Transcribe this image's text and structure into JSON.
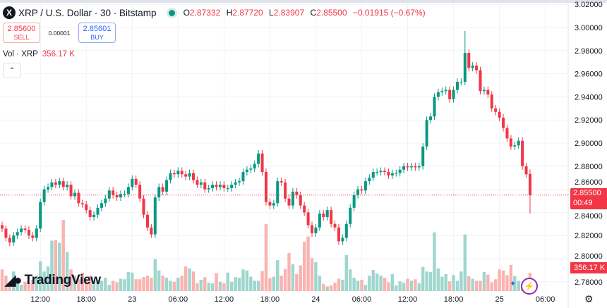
{
  "header": {
    "logo_text": "X",
    "title": "XRP / U.S. Dollar · 30 · Bitstamp",
    "ohlc": [
      {
        "label": "O",
        "value": "2.87332"
      },
      {
        "label": "H",
        "value": "2.87720"
      },
      {
        "label": "L",
        "value": "2.83907"
      },
      {
        "label": "C",
        "value": "2.85500"
      }
    ],
    "change": "−0.01915 (−0.67%)"
  },
  "trade": {
    "sell_price": "2.85600",
    "sell_label": "SELL",
    "spread": "0.00001",
    "buy_price": "2.85601",
    "buy_label": "BUY"
  },
  "volume_legend": {
    "label": "Vol · XRP",
    "value": "356.17 K"
  },
  "collapse_icon": "chevron-up-icon",
  "branding": {
    "name": "TradingView",
    "mark": "17"
  },
  "price_label": {
    "price": "2.85500",
    "countdown": "00:49"
  },
  "volume_label": "356.17 K",
  "colors": {
    "up": "#089981",
    "down": "#f23645",
    "grid": "#f0f3fa",
    "up_volume": "#9fd6cd",
    "down_volume": "#f9b3b0"
  },
  "chart_data": {
    "type": "candlestick",
    "symbol": "XRP / U.S. Dollar",
    "interval": "30",
    "x_tick_labels": [
      "12:00",
      "18:00",
      "23",
      "06:00",
      "12:00",
      "18:00",
      "24",
      "06:00",
      "12:00",
      "18:00",
      "25",
      "06:00"
    ],
    "y_tick_labels": [
      "3.02000",
      "3.00000",
      "2.98000",
      "2.96000",
      "2.94000",
      "2.92000",
      "2.90000",
      "2.88000",
      "2.86000",
      "2.84000",
      "2.82000",
      "2.80000",
      "2.78000"
    ],
    "ylim": [
      2.775,
      3.022
    ],
    "grid": true,
    "last_bar": {
      "open": 2.87332,
      "high": 2.8772,
      "low": 2.83907,
      "close": 2.855
    },
    "close": [
      2.826,
      2.818,
      2.814,
      2.82,
      2.823,
      2.826,
      2.825,
      2.82,
      2.818,
      2.826,
      2.849,
      2.86,
      2.862,
      2.866,
      2.864,
      2.867,
      2.862,
      2.864,
      2.854,
      2.857,
      2.848,
      2.847,
      2.842,
      2.836,
      2.838,
      2.844,
      2.848,
      2.852,
      2.859,
      2.855,
      2.853,
      2.856,
      2.856,
      2.862,
      2.869,
      2.864,
      2.852,
      2.838,
      2.827,
      2.821,
      2.853,
      2.862,
      2.858,
      2.868,
      2.874,
      2.873,
      2.876,
      2.873,
      2.871,
      2.874,
      2.868,
      2.864,
      2.866,
      2.86,
      2.861,
      2.864,
      2.862,
      2.864,
      2.861,
      2.861,
      2.864,
      2.866,
      2.867,
      2.875,
      2.877,
      2.878,
      2.882,
      2.891,
      2.875,
      2.849,
      2.846,
      2.848,
      2.867,
      2.866,
      2.852,
      2.846,
      2.858,
      2.855,
      2.846,
      2.84,
      2.829,
      2.822,
      2.827,
      2.839,
      2.836,
      2.842,
      2.83,
      2.827,
      2.815,
      2.818,
      2.83,
      2.844,
      2.855,
      2.86,
      2.859,
      2.867,
      2.87,
      2.875,
      2.875,
      2.876,
      2.875,
      2.872,
      2.874,
      2.874,
      2.877,
      2.88,
      2.879,
      2.88,
      2.879,
      2.88,
      2.897,
      2.92,
      2.923,
      2.94,
      2.944,
      2.945,
      2.946,
      2.938,
      2.946,
      2.953,
      2.953,
      2.978,
      2.965,
      2.967,
      2.963,
      2.945,
      2.946,
      2.942,
      2.93,
      2.927,
      2.922,
      2.913,
      2.904,
      2.897,
      2.898,
      2.902,
      2.88,
      2.873,
      2.855
    ],
    "volume_k": [
      420,
      300,
      150,
      380,
      200,
      120,
      180,
      170,
      220,
      300,
      580,
      380,
      480,
      980,
      990,
      940,
      1380,
      760,
      420,
      300,
      230,
      360,
      230,
      300,
      210,
      220,
      200,
      260,
      120,
      200,
      170,
      240,
      230,
      370,
      360,
      230,
      230,
      270,
      300,
      260,
      620,
      400,
      300,
      260,
      200,
      180,
      260,
      300,
      480,
      440,
      380,
      150,
      220,
      270,
      160,
      150,
      350,
      180,
      150,
      360,
      180,
      270,
      260,
      420,
      400,
      280,
      200,
      200,
      390,
      1300,
      250,
      280,
      600,
      300,
      430,
      740,
      520,
      330,
      500,
      960,
      1060,
      640,
      560,
      300,
      140,
      90,
      110,
      160,
      240,
      220,
      700,
      420,
      260,
      200,
      220,
      120,
      300,
      410,
      340,
      300,
      260,
      170,
      330,
      110,
      190,
      160,
      240,
      200,
      230,
      150,
      470,
      380,
      370,
      1140,
      440,
      280,
      330,
      190,
      310,
      200,
      380,
      1100,
      290,
      240,
      200,
      200,
      370,
      320,
      170,
      230,
      420,
      400,
      310,
      510,
      290,
      200,
      110,
      110,
      356.17
    ]
  }
}
